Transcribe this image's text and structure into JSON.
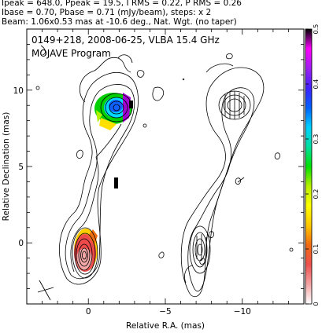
{
  "header": {
    "line1": "Ipeak = 648.0, Ppeak = 19.5, I RMS = 0.22, P RMS = 0.26",
    "line2": "Ibase = 0.70, Pbase = 0.71 (mJy/beam), steps: x 2",
    "line3": "Beam: 1.06x0.53 mas at -10.6 deg., Nat. Wgt. (no taper)"
  },
  "panel": {
    "title": "0149+218, 2008-06-25, VLBA 15.4 GHz",
    "subtitle": "MOJAVE Program"
  },
  "chart_data": {
    "type": "contour",
    "source": "0149+218",
    "date": "2008-06-25",
    "instrument": "VLBA 15.4 GHz",
    "xlabel": "Relative R.A. (mas)",
    "ylabel": "Relative Declination (mas)",
    "xlim": [
      4,
      -14
    ],
    "ylim": [
      -4,
      14
    ],
    "x_ticks": [
      0,
      -5,
      -10
    ],
    "x_tick_labels": [
      "0",
      "−5",
      "−10"
    ],
    "y_ticks": [
      0,
      5,
      10
    ],
    "y_tick_labels": [
      "0",
      "5",
      "10"
    ],
    "panel_offset_x": -7,
    "core": {
      "x": 0.0,
      "y": 0.0
    },
    "jet_knot": {
      "x": -1.8,
      "y": 8.8
    },
    "intensity_peak_mJy_per_beam": 648.0,
    "polarization_peak_mJy_per_beam": 19.5,
    "intensity_rms": 0.22,
    "polarization_rms": 0.26,
    "intensity_base": 0.7,
    "polarization_base": 0.71,
    "contour_step_factor": 2,
    "beam": {
      "major_mas": 1.06,
      "minor_mas": 0.53,
      "pa_deg": -10.6
    },
    "colorbar": {
      "min": 0,
      "max": 0.5,
      "ticks": [
        0,
        0.1,
        0.2,
        0.3,
        0.4,
        0.5
      ],
      "tick_labels": [
        "0",
        "0.1",
        "0.2",
        "0.3",
        "0.4",
        "0.5"
      ],
      "colors": [
        "#ffffff",
        "#f4a4a4",
        "#ee5050",
        "#f06a10",
        "#ffc800",
        "#ffff00",
        "#b8f000",
        "#00e000",
        "#00e0a0",
        "#00d0ff",
        "#0060ff",
        "#4020ff",
        "#a020f0",
        "#ff00ff",
        "#000000"
      ]
    }
  }
}
